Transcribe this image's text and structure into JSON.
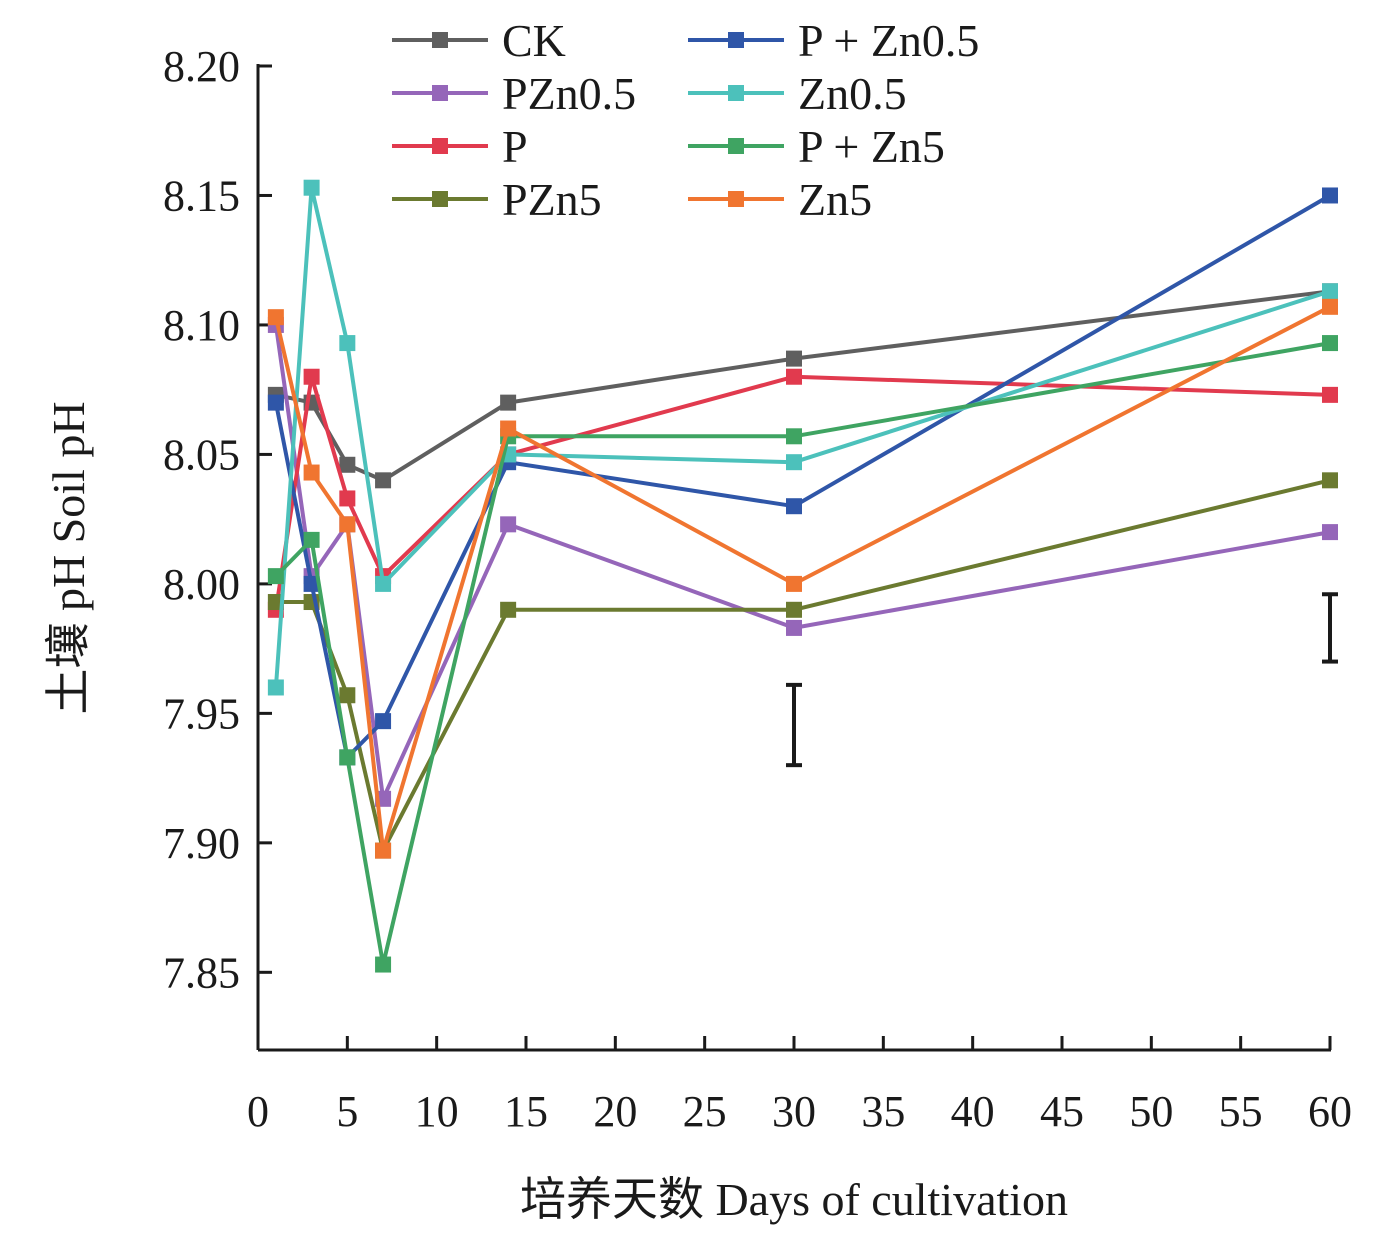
{
  "chart_data": {
    "type": "line",
    "title": "",
    "xlabel": "培养天数 Days of cultivation",
    "ylabel": "土壤 pH Soil pH",
    "xlim": [
      0,
      60
    ],
    "ylim": [
      7.82,
      8.2
    ],
    "x_ticks": [
      0,
      5,
      10,
      15,
      20,
      25,
      30,
      35,
      40,
      45,
      50,
      55,
      60
    ],
    "x_tick_labels": [
      "0",
      "5",
      "10",
      "15",
      "20",
      "25",
      "30",
      "35",
      "40",
      "45",
      "50",
      "55",
      "60"
    ],
    "y_ticks": [
      7.85,
      7.9,
      7.95,
      8.0,
      8.05,
      8.1,
      8.15,
      8.2
    ],
    "y_tick_labels": [
      "7.85",
      "7.90",
      "7.95",
      "8.00",
      "8.05",
      "8.10",
      "8.15",
      "8.20"
    ],
    "grid": false,
    "legend_position": "top",
    "x": [
      1,
      3,
      5,
      7,
      14,
      30,
      60
    ],
    "series": [
      {
        "name": "CK",
        "color": "#5f5f5f",
        "values": [
          8.073,
          8.07,
          8.046,
          8.04,
          8.07,
          8.087,
          8.113
        ]
      },
      {
        "name": "PZn0.5",
        "color": "#9566b9",
        "values": [
          8.1,
          8.003,
          8.023,
          7.917,
          8.023,
          7.983,
          8.02
        ]
      },
      {
        "name": "P",
        "color": "#e13a4e",
        "values": [
          7.99,
          8.08,
          8.033,
          8.003,
          8.05,
          8.08,
          8.073
        ]
      },
      {
        "name": "PZn5",
        "color": "#6b7a30",
        "values": [
          7.993,
          7.993,
          7.957,
          7.897,
          7.99,
          7.99,
          8.04
        ]
      },
      {
        "name": "P + Zn0.5",
        "color": "#2f56a8",
        "values": [
          8.07,
          8.0,
          7.933,
          7.947,
          8.047,
          8.03,
          8.15
        ]
      },
      {
        "name": "Zn0.5",
        "color": "#4cc1bb",
        "values": [
          7.96,
          8.153,
          8.093,
          8.0,
          8.05,
          8.047,
          8.113
        ]
      },
      {
        "name": "P + Zn5",
        "color": "#3fa462",
        "values": [
          8.003,
          8.017,
          7.933,
          7.853,
          8.057,
          8.057,
          8.093
        ]
      },
      {
        "name": "Zn5",
        "color": "#f07530",
        "values": [
          8.103,
          8.043,
          8.023,
          7.897,
          8.06,
          8.0,
          8.107
        ]
      }
    ],
    "error_bars": [
      {
        "x": 30,
        "low": 7.93,
        "high": 7.961
      },
      {
        "x": 60,
        "low": 7.97,
        "high": 7.996
      }
    ]
  }
}
